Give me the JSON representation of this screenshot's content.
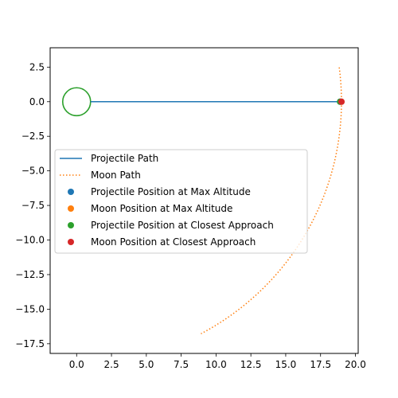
{
  "chart_data": {
    "type": "line",
    "title": "",
    "xlabel": "",
    "ylabel": "",
    "xlim": [
      -1.9,
      20.2
    ],
    "ylim": [
      -18.2,
      3.9
    ],
    "grid": false,
    "xticks": [
      0.0,
      2.5,
      5.0,
      7.5,
      10.0,
      12.5,
      15.0,
      17.5,
      20.0
    ],
    "xtick_labels": [
      "0.0",
      "2.5",
      "5.0",
      "7.5",
      "10.0",
      "12.5",
      "15.0",
      "17.5",
      "20.0"
    ],
    "yticks": [
      2.5,
      0.0,
      -2.5,
      -5.0,
      -7.5,
      -10.0,
      -12.5,
      -15.0,
      -17.5
    ],
    "ytick_labels": [
      "2.5",
      "0.0",
      "−2.5",
      "−5.0",
      "−7.5",
      "−10.0",
      "−12.5",
      "−15.0",
      "−17.5"
    ],
    "earth": {
      "center": [
        0,
        0
      ],
      "radius": 1.0,
      "color": "#2ca02c"
    },
    "series": [
      {
        "name": "Projectile Path",
        "style": "solid",
        "color": "#1f77b4",
        "x": [
          1.0,
          18.9
        ],
        "y": [
          0.0,
          0.0
        ]
      },
      {
        "name": "Moon Path",
        "style": "dotted",
        "color": "#ff7f0e",
        "arc": {
          "radius": 19.0,
          "start_deg": 7.5,
          "end_deg": -62.0
        }
      }
    ],
    "points": [
      {
        "name": "Projectile Position at Max Altitude",
        "color": "#1f77b4",
        "x": 18.9,
        "y": 0.0
      },
      {
        "name": "Moon Position at Max Altitude",
        "color": "#ff7f0e",
        "x": 19.0,
        "y": 0.0
      },
      {
        "name": "Projectile Position at Closest Approach",
        "color": "#2ca02c",
        "x": 18.9,
        "y": 0.0
      },
      {
        "name": "Moon Position at Closest Approach",
        "color": "#d62728",
        "x": 19.0,
        "y": 0.0
      }
    ],
    "legend": {
      "placement": "center-left",
      "entries": [
        "Projectile Path",
        "Moon Path",
        "Projectile Position at Max Altitude",
        "Moon Position at Max Altitude",
        "Projectile Position at Closest Approach",
        "Moon Position at Closest Approach"
      ]
    }
  }
}
